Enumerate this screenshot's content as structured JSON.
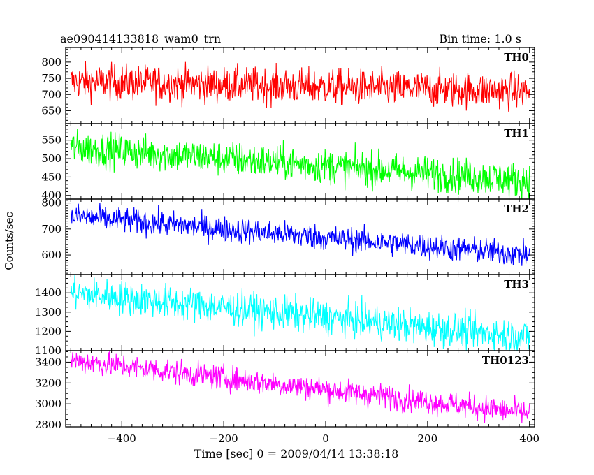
{
  "chart_data": {
    "type": "line",
    "title_left": "ae090414133818_wam0_trn",
    "title_right": "Bin time: 1.0 s",
    "xlabel": "Time [sec] 0 = 2009/04/14 13:38:18",
    "ylabel": "Counts/sec",
    "xlim": [
      -510,
      410
    ],
    "xticks": [
      -400,
      -200,
      0,
      200,
      400
    ],
    "panels": [
      {
        "name": "TH0",
        "color": "#ff0000",
        "ylim": [
          610,
          845
        ],
        "yticks": [
          650,
          700,
          750,
          800
        ],
        "trend": {
          "x": [
            -500,
            400
          ],
          "y": [
            740,
            710
          ]
        },
        "noise": 28
      },
      {
        "name": "TH1",
        "color": "#00ff00",
        "ylim": [
          390,
          595
        ],
        "yticks": [
          400,
          450,
          500,
          550
        ],
        "trend": {
          "x": [
            -500,
            400
          ],
          "y": [
            530,
            440
          ]
        },
        "noise": 24
      },
      {
        "name": "TH2",
        "color": "#0000ff",
        "ylim": [
          525,
          815
        ],
        "yticks": [
          600,
          700,
          800
        ],
        "trend": {
          "x": [
            -500,
            400
          ],
          "y": [
            750,
            600
          ]
        },
        "noise": 25
      },
      {
        "name": "TH3",
        "color": "#00ffff",
        "ylim": [
          1100,
          1495
        ],
        "yticks": [
          1100,
          1200,
          1300,
          1400
        ],
        "trend": {
          "x": [
            -500,
            400
          ],
          "y": [
            1400,
            1170
          ]
        },
        "noise": 45
      },
      {
        "name": "TH0123",
        "color": "#ff00ff",
        "ylim": [
          2780,
          3510
        ],
        "yticks": [
          2800,
          3000,
          3200,
          3400
        ],
        "trend": {
          "x": [
            -500,
            400
          ],
          "y": [
            3420,
            2910
          ]
        },
        "noise": 60
      }
    ]
  }
}
